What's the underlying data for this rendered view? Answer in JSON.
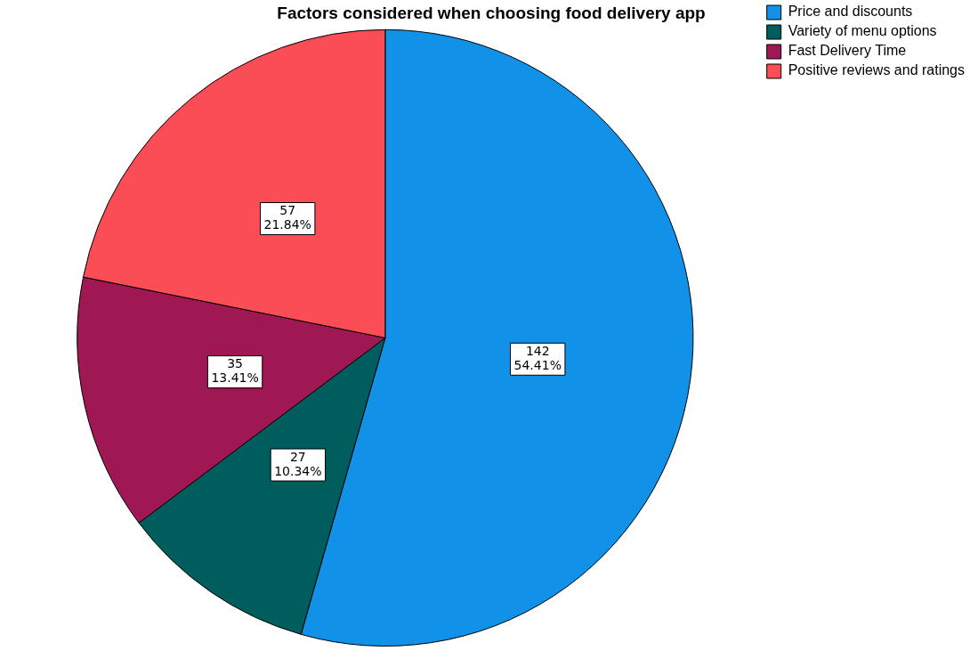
{
  "chart_data": {
    "type": "pie",
    "title": "Factors considered when choosing food delivery app",
    "categories": [
      "Price and discounts",
      "Variety of menu options",
      "Fast Delivery Time",
      "Positive reviews and ratings"
    ],
    "values": [
      142,
      27,
      35,
      57
    ],
    "colors": [
      "#1192e8",
      "#005d5d",
      "#9f1853",
      "#fa4d56"
    ],
    "value_labels": [
      "142\n54.41%",
      "27\n10.34%",
      "35\n13.41%",
      "57\n21.84%"
    ],
    "legend": "top right"
  }
}
